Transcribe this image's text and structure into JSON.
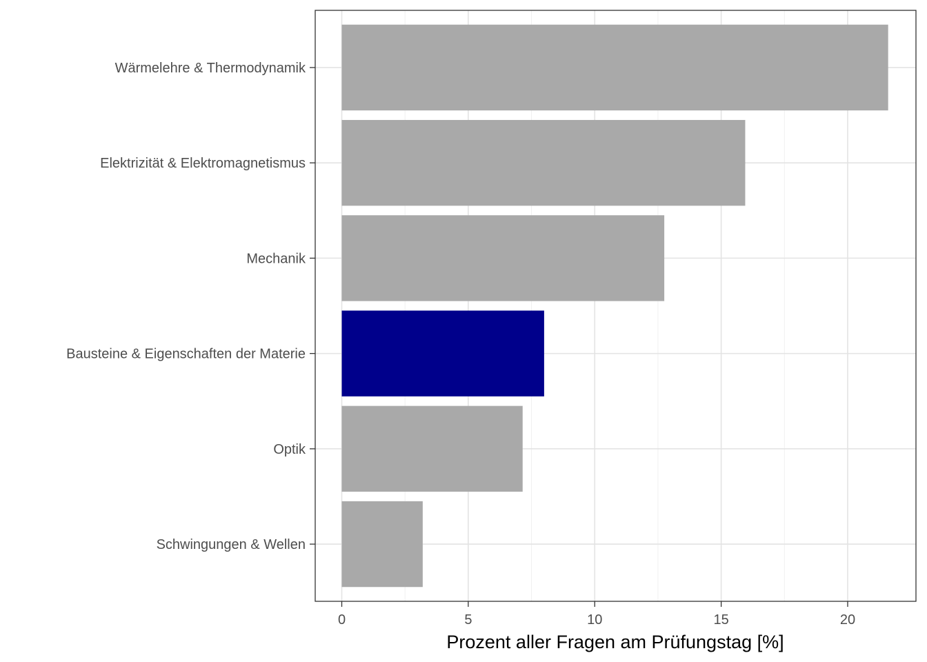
{
  "chart_data": {
    "type": "bar",
    "orientation": "horizontal",
    "categories": [
      "Wärmelehre & Thermodynamik",
      "Elektrizität & Elektromagnetismus",
      "Mechanik",
      "Bausteine & Eigenschaften der Materie",
      "Optik",
      "Schwingungen & Wellen"
    ],
    "values": [
      21.6,
      15.95,
      12.75,
      8.0,
      7.15,
      3.2
    ],
    "highlight_index": 3,
    "colors": {
      "bar": "#a9a9a9",
      "highlight": "#00008b"
    },
    "xlabel": "Prozent aller Fragen am Prüfungstag [%]",
    "ylabel": "",
    "title": "",
    "xlim": [
      -1.05,
      22.7
    ],
    "xticks": [
      0,
      5,
      10,
      15,
      20
    ],
    "xtick_labels": [
      "0",
      "5",
      "10",
      "15",
      "20"
    ],
    "grid": true,
    "legend": "none"
  }
}
